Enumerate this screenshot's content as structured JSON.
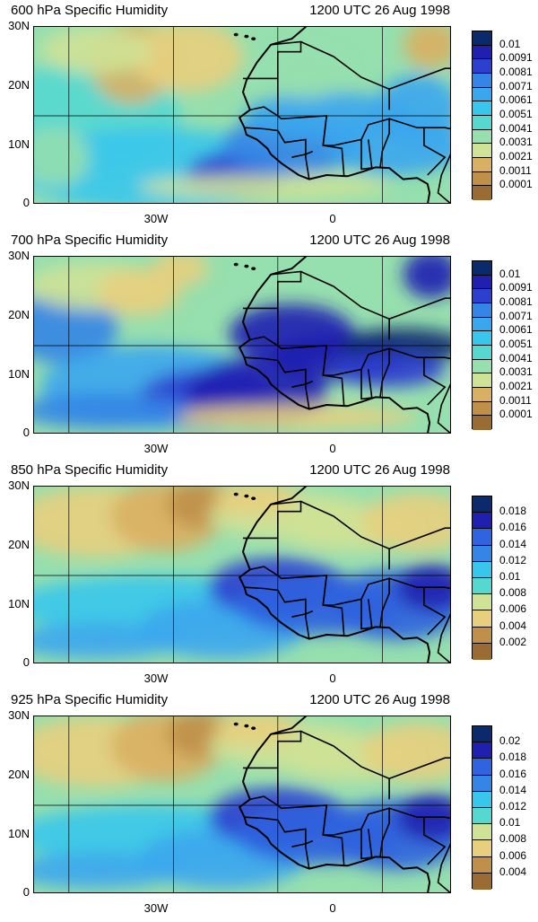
{
  "panels": [
    {
      "title": "600 hPa Specific Humidity",
      "date": "1200 UTC 26 Aug 1998",
      "cb_labels": [
        "0.01",
        "0.0091",
        "0.0081",
        "0.0071",
        "0.0061",
        "0.0051",
        "0.0041",
        "0.0031",
        "0.0021",
        "0.0011",
        "0.0001"
      ],
      "moisture": "low"
    },
    {
      "title": "700 hPa Specific Humidity",
      "date": "1200 UTC 26 Aug 1998",
      "cb_labels": [
        "0.01",
        "0.0091",
        "0.0081",
        "0.0071",
        "0.0061",
        "0.0051",
        "0.0041",
        "0.0031",
        "0.0021",
        "0.0011",
        "0.0001"
      ],
      "moisture": "high"
    },
    {
      "title": "850 hPa Specific Humidity",
      "date": "1200 UTC 26 Aug 1998",
      "cb_labels": [
        "0.018",
        "0.016",
        "0.014",
        "0.012",
        "0.01",
        "0.008",
        "0.006",
        "0.004",
        "0.002"
      ],
      "moisture": "mid"
    },
    {
      "title": "925 hPa Specific Humidity",
      "date": "1200 UTC 26 Aug 1998",
      "cb_labels": [
        "0.02",
        "0.018",
        "0.016",
        "0.014",
        "0.012",
        "0.01",
        "0.008",
        "0.006",
        "0.004"
      ],
      "moisture": "mid"
    }
  ],
  "axes": {
    "y_labels": [
      "30N",
      "20N",
      "10N",
      "0"
    ],
    "x_labels": [
      "30W",
      "0"
    ]
  },
  "colors": {
    "ramp": [
      "#0b2a6e",
      "#1f1fb0",
      "#2c3fcf",
      "#2f63df",
      "#3585e6",
      "#3aa6ee",
      "#38c6ec",
      "#55d8d0",
      "#96dfae",
      "#cfe296",
      "#e8cf7e",
      "#d9b063",
      "#c08f49",
      "#9a6b33"
    ]
  }
}
